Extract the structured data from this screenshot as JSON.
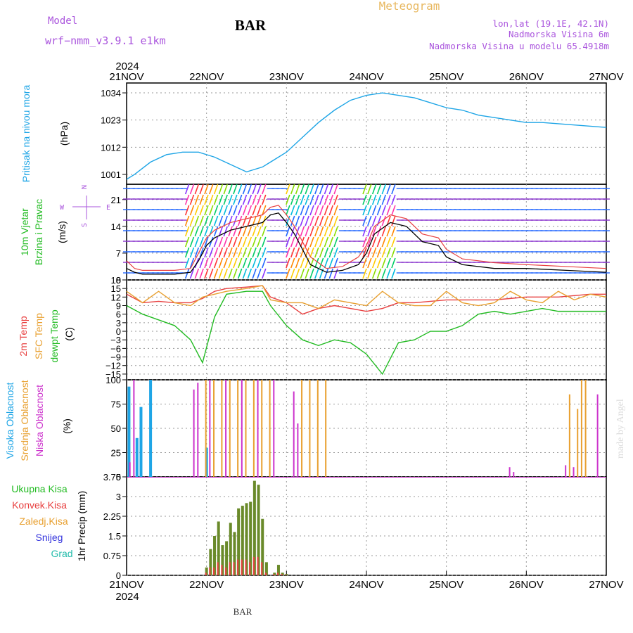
{
  "header": {
    "model_label": "Model",
    "model_name": "wrf−nmm_v3.9.1  e1km",
    "location": "BAR",
    "title": "Meteogram",
    "coords": "lon,lat (19.1E, 42.1N)",
    "elev": "Nadmorska Visina 6m",
    "elev_model": "Nadmorska Visina u modelu 65.4918m"
  },
  "footer": {
    "location": "BAR",
    "credit": "made by Angel"
  },
  "colors": {
    "pressure": "#1ea5e6",
    "green": "#22bb22",
    "magenta": "#cc33cc",
    "red": "#e84040",
    "orange": "#e8a030",
    "blue": "#3333dd",
    "teal": "#22bbaa",
    "purple": "#aa55dd",
    "title_orange": "#e8b860",
    "gray": "#333333"
  },
  "chart_data": [
    {
      "type": "line",
      "panel": "pressure",
      "ylabel_left": "Pritisak na nivou mora",
      "unit": "(hPa)",
      "ylim": [
        997,
        1038
      ],
      "yticks": [
        "1001",
        "1012",
        "1023",
        "1034"
      ],
      "x_unit": "days since 21NOV 00UTC",
      "x": [
        0,
        0.1,
        0.3,
        0.5,
        0.7,
        0.9,
        1.1,
        1.3,
        1.5,
        1.7,
        1.9,
        2.0,
        2.2,
        2.4,
        2.6,
        2.8,
        3.0,
        3.2,
        3.4,
        3.6,
        3.8,
        4.0,
        4.2,
        4.4,
        4.6,
        4.8,
        5.0,
        5.2,
        5.4,
        5.6,
        5.8,
        6.0
      ],
      "values": [
        999,
        1001,
        1006,
        1009,
        1010,
        1010,
        1008,
        1005,
        1002,
        1004,
        1008,
        1010,
        1016,
        1022,
        1027,
        1031,
        1033,
        1034,
        1033,
        1032,
        1030,
        1028,
        1027,
        1025,
        1024,
        1023,
        1022,
        1022,
        1021.5,
        1021,
        1020.5,
        1020
      ]
    },
    {
      "type": "line",
      "panel": "wind",
      "ylabel_left": [
        "10m Vjetar",
        "Brzina i Pravac"
      ],
      "unit": "(m/s)",
      "compass": [
        "N",
        "W",
        "E",
        "S"
      ],
      "ylim": [
        0,
        25
      ],
      "yticks": [
        "0",
        "7",
        "14",
        "21"
      ],
      "x": [
        0,
        0.1,
        0.2,
        0.4,
        0.6,
        0.8,
        0.9,
        1.0,
        1.1,
        1.3,
        1.5,
        1.7,
        1.8,
        1.9,
        2.0,
        2.1,
        2.3,
        2.5,
        2.7,
        2.9,
        3.0,
        3.1,
        3.3,
        3.5,
        3.7,
        3.9,
        4.0,
        4.2,
        4.6,
        5.0,
        5.5,
        6.0
      ],
      "mean_speed": [
        3,
        2,
        1.5,
        1.5,
        1.5,
        2,
        5,
        9,
        11,
        13,
        14,
        15,
        17,
        17.5,
        15,
        12,
        4,
        2,
        2.5,
        4,
        7,
        12,
        15,
        14,
        10,
        9,
        6,
        4,
        3,
        3,
        2.5,
        2
      ],
      "gust_speed": [
        5,
        3,
        2.5,
        2.5,
        2.5,
        3,
        7,
        11,
        13,
        15,
        16,
        17,
        19,
        19.5,
        17,
        14,
        6,
        3,
        3.5,
        6,
        9,
        14,
        17,
        16,
        12,
        11,
        8,
        5.5,
        4.5,
        4,
        3.5,
        3
      ]
    },
    {
      "type": "line",
      "panel": "temperature",
      "ylabel_left": [
        "2m Temp",
        "SFC Temp",
        "dewpt Temp"
      ],
      "unit": "(C)",
      "ylim": [
        -17,
        18
      ],
      "yticks": [
        "−15",
        "−12",
        "−9",
        "−6",
        "−3",
        "0",
        "3",
        "6",
        "9",
        "12",
        "15",
        "18"
      ],
      "x": [
        0,
        0.2,
        0.4,
        0.6,
        0.8,
        0.95,
        1.1,
        1.25,
        1.5,
        1.7,
        1.8,
        2.0,
        2.2,
        2.4,
        2.6,
        2.8,
        3.0,
        3.2,
        3.4,
        3.6,
        3.8,
        4.0,
        4.2,
        4.4,
        4.6,
        4.8,
        5.0,
        5.2,
        5.4,
        5.6,
        5.8,
        6.0
      ],
      "series": [
        {
          "name": "2m Temp",
          "color": "#e84040",
          "values": [
            13,
            10,
            10.5,
            10,
            10,
            11.5,
            14,
            15,
            15.5,
            16,
            12,
            10,
            6,
            8,
            9,
            8,
            7,
            8,
            10,
            10,
            10.5,
            11,
            11,
            11,
            11,
            11.5,
            12,
            12,
            12,
            12.5,
            13,
            13
          ]
        },
        {
          "name": "SFC Temp",
          "color": "#e8a030",
          "values": [
            14,
            10,
            14,
            10,
            9,
            12,
            13,
            14,
            15,
            16,
            11,
            10,
            10,
            8,
            11,
            10,
            9,
            14,
            10,
            9,
            9,
            14,
            10,
            9,
            10,
            14,
            11,
            10,
            14,
            11,
            13,
            12
          ]
        },
        {
          "name": "dewpt Temp",
          "color": "#22bb22",
          "values": [
            9,
            6,
            4,
            2,
            -3,
            -11,
            5,
            13,
            14,
            14,
            9,
            2,
            -3,
            -5,
            -3,
            -4,
            -8,
            -15,
            -4,
            -3,
            0,
            0,
            2,
            6,
            7,
            6,
            7,
            8,
            7,
            7,
            7,
            7
          ]
        }
      ]
    },
    {
      "type": "bar",
      "panel": "clouds",
      "ylabel_left": [
        "Visoka Oblacnost",
        "Srednja Oblacnost",
        "Niska Oblacnost"
      ],
      "unit": "(%)",
      "ylim": [
        0,
        100
      ],
      "yticks": [
        "0",
        "25",
        "50",
        "75",
        "100"
      ],
      "series": [
        {
          "name": "Visoka Oblacnost",
          "color": "#1ea5e6",
          "x": [
            0.03,
            0.13,
            0.18,
            0.3,
            1.0
          ],
          "values": [
            93,
            40,
            72,
            100,
            30
          ]
        },
        {
          "name": "Srednja Oblacnost",
          "color": "#e8a030",
          "x": [
            1.0,
            1.1,
            1.2,
            1.3,
            1.4,
            1.5,
            1.6,
            1.7,
            1.8,
            2.2,
            2.3,
            2.4,
            2.5,
            5.55,
            5.65,
            5.7,
            5.75
          ],
          "values": [
            100,
            100,
            100,
            100,
            100,
            100,
            100,
            100,
            100,
            100,
            100,
            100,
            100,
            85,
            70,
            100,
            100
          ]
        },
        {
          "name": "Niska Oblacnost",
          "color": "#cc33cc",
          "x": [
            0.05,
            0.1,
            0.85,
            0.9,
            1.05,
            1.25,
            1.45,
            1.65,
            1.85,
            2.1,
            2.15,
            4.8,
            4.85,
            5.5,
            5.6,
            5.9
          ],
          "values": [
            15,
            100,
            90,
            97,
            100,
            100,
            100,
            100,
            100,
            88,
            55,
            10,
            5,
            12,
            10,
            85
          ]
        }
      ]
    },
    {
      "type": "bar",
      "panel": "precip",
      "ylabel_left": [
        "Ukupna Kisa",
        "Konvek.Kisa",
        "Zaledj.Kisa",
        "Snijeg",
        "Grad"
      ],
      "legend_colors": [
        "#22bb22",
        "#e84040",
        "#e8a030",
        "#3333dd",
        "#22bbaa"
      ],
      "unit": "1hr Precip (mm)",
      "ylim": [
        0,
        3.75
      ],
      "yticks": [
        "0",
        "0.75",
        "1.5",
        "2.25",
        "3",
        "3.75"
      ],
      "x": [
        1.0,
        1.05,
        1.1,
        1.15,
        1.2,
        1.25,
        1.3,
        1.35,
        1.4,
        1.45,
        1.5,
        1.55,
        1.6,
        1.65,
        1.7,
        1.75,
        1.85,
        1.9,
        1.95,
        2.0
      ],
      "values": [
        0.3,
        1.0,
        1.5,
        2.05,
        1.15,
        1.3,
        2.0,
        1.65,
        2.55,
        2.65,
        2.75,
        2.8,
        3.6,
        3.45,
        2.15,
        0.5,
        0.1,
        0.4,
        0.1,
        0.05
      ],
      "konvek": [
        0.1,
        0.3,
        0.3,
        0.5,
        0.4,
        0.3,
        0.5,
        0.5,
        0.6,
        0.6,
        0.6,
        0.5,
        0.7,
        0.7,
        0.5,
        0.1,
        0.05,
        0.1,
        0.05,
        0.02
      ]
    }
  ],
  "x_axis": {
    "year": "2024",
    "labels": [
      "21NOV",
      "22NOV",
      "23NOV",
      "24NOV",
      "25NOV",
      "26NOV",
      "27NOV"
    ]
  }
}
